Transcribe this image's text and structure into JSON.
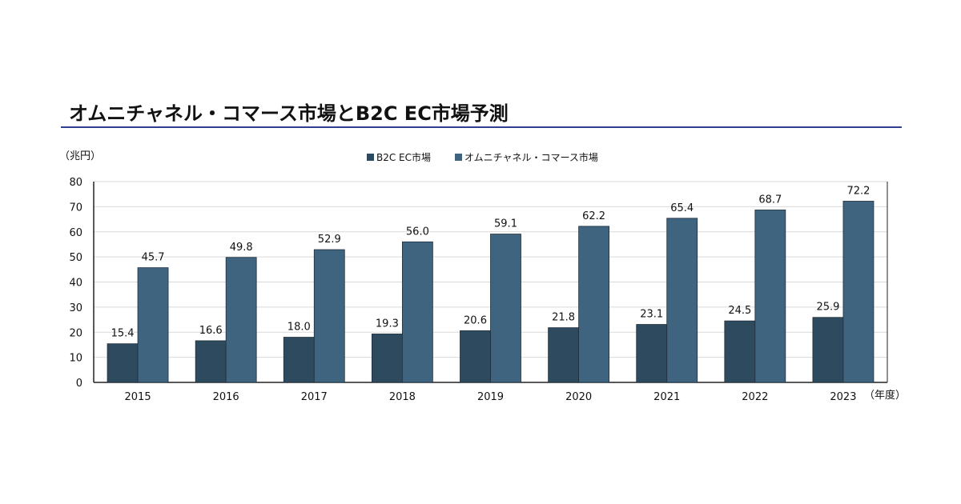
{
  "title": "オムニチャネル・コマース市場とB2C EC市場予測",
  "colors": {
    "b2c": "#2e4a5e",
    "omni": "#3f6480",
    "title_rule": "#2f3f8f",
    "grid": "#d9d9d9",
    "text": "#111111"
  },
  "chart_data": {
    "type": "bar",
    "title": "オムニチャネル・コマース市場とB2C EC市場予測",
    "ylabel": "（兆円）",
    "xlabel": "（年度）",
    "ylim": [
      0,
      80
    ],
    "yticks": [
      0,
      10,
      20,
      30,
      40,
      50,
      60,
      70,
      80
    ],
    "grid": true,
    "legend": "top-center",
    "categories": [
      "2015",
      "2016",
      "2017",
      "2018",
      "2019",
      "2020",
      "2021",
      "2022",
      "2023"
    ],
    "series": [
      {
        "name": "B2C EC市場",
        "values": [
          15.4,
          16.6,
          18.0,
          19.3,
          20.6,
          21.8,
          23.1,
          24.5,
          25.9
        ],
        "labels": [
          "15.4",
          "16.6",
          "18.0",
          "19.3",
          "20.6",
          "21.8",
          "23.1",
          "24.5",
          "25.9"
        ]
      },
      {
        "name": "オムニチャネル・コマース市場",
        "values": [
          45.7,
          49.8,
          52.9,
          56.0,
          59.1,
          62.2,
          65.4,
          68.7,
          72.2
        ],
        "labels": [
          "45.7",
          "49.8",
          "52.9",
          "56.0",
          "59.1",
          "62.2",
          "65.4",
          "68.7",
          "72.2"
        ]
      }
    ]
  }
}
